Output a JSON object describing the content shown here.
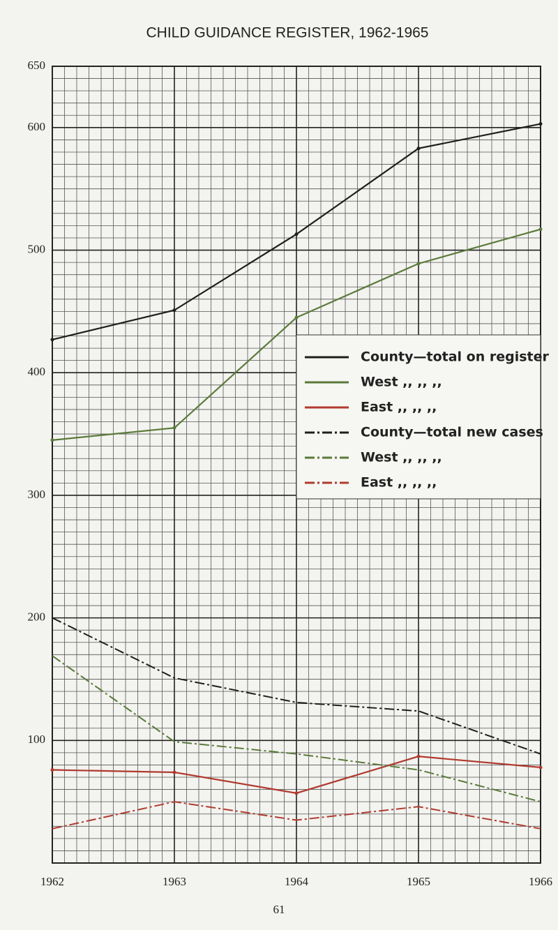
{
  "chart_data": {
    "type": "line",
    "title": "CHILD GUIDANCE REGISTER, 1962-1965",
    "x": [
      1962,
      1963,
      1964,
      1965,
      1966
    ],
    "xlim": [
      1962,
      1966
    ],
    "xticks": [
      1962,
      1963,
      1964,
      1965,
      1966
    ],
    "ylim": [
      0,
      650
    ],
    "yticks": [
      100,
      200,
      300,
      400,
      500,
      600,
      650
    ],
    "grid": true,
    "legend": "right",
    "series": [
      {
        "name": "County—total on register",
        "color": "#1e1e1e",
        "dashed": false,
        "values": [
          427,
          451,
          513,
          583,
          603
        ]
      },
      {
        "name": "West ,, ,, ,,",
        "color": "#5a7a3a",
        "dashed": false,
        "values": [
          345,
          355,
          445,
          489,
          517
        ]
      },
      {
        "name": "East ,, ,, ,,",
        "color": "#b03a2e",
        "dashed": false,
        "values": [
          76,
          74,
          57,
          87,
          78
        ]
      },
      {
        "name": "County—total new cases",
        "color": "#1e1e1e",
        "dashed": true,
        "values": [
          200,
          151,
          131,
          124,
          89
        ]
      },
      {
        "name": "West ,, ,, ,,",
        "color": "#5a7a3a",
        "dashed": true,
        "values": [
          169,
          99,
          89,
          76,
          50
        ]
      },
      {
        "name": "East ,, ,, ,,",
        "color": "#b03a2e",
        "dashed": true,
        "values": [
          28,
          50,
          35,
          46,
          28
        ]
      }
    ]
  },
  "page_number": "61"
}
